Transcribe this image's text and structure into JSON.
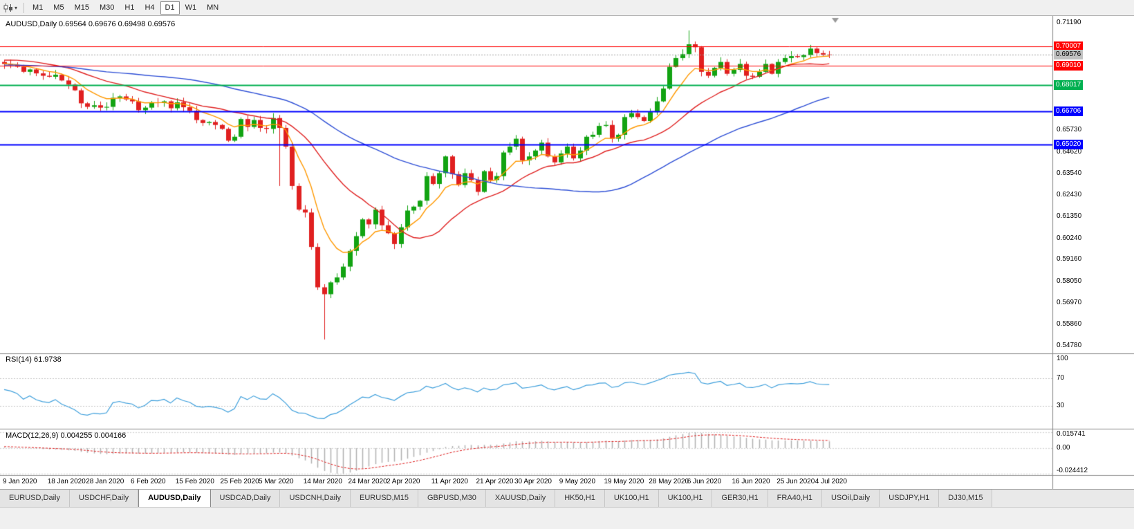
{
  "toolbar": {
    "timeframes": [
      "M1",
      "M5",
      "M15",
      "M30",
      "H1",
      "H4",
      "D1",
      "W1",
      "MN"
    ],
    "active_timeframe": "D1",
    "icons": {
      "chart_menu_caret": "▾"
    }
  },
  "chart": {
    "title_line": "AUDUSD,Daily 0.69564 0.69676 0.69498 0.69576",
    "symbol": "AUDUSD,Daily",
    "ohlc": {
      "open": "0.69564",
      "high": "0.69676",
      "low": "0.69498",
      "close": "0.69576"
    }
  },
  "chart_data": {
    "type": "candlestick",
    "symbol": "AUDUSD",
    "timeframe": "Daily",
    "price_min": 0.5478,
    "price_max": 0.7119,
    "bull_color": "#12a312",
    "bear_color": "#e02020",
    "first_open": 0.692,
    "closes": [
      0.691,
      0.6905,
      0.6896,
      0.687,
      0.6882,
      0.6862,
      0.685,
      0.6845,
      0.6855,
      0.6826,
      0.6805,
      0.6776,
      0.671,
      0.6692,
      0.67,
      0.6688,
      0.6692,
      0.6738,
      0.6745,
      0.673,
      0.672,
      0.6675,
      0.6688,
      0.6715,
      0.6712,
      0.672,
      0.6685,
      0.6715,
      0.669,
      0.6672,
      0.6625,
      0.661,
      0.6615,
      0.66,
      0.658,
      0.652,
      0.654,
      0.663,
      0.659,
      0.6625,
      0.6585,
      0.658,
      0.6635,
      0.6585,
      0.649,
      0.629,
      0.617,
      0.6155,
      0.598,
      0.5775,
      0.574,
      0.58,
      0.5825,
      0.588,
      0.596,
      0.6035,
      0.612,
      0.6095,
      0.617,
      0.609,
      0.605,
      0.5995,
      0.608,
      0.6165,
      0.6185,
      0.6215,
      0.634,
      0.63,
      0.6355,
      0.644,
      0.635,
      0.6295,
      0.6355,
      0.632,
      0.626,
      0.6365,
      0.632,
      0.634,
      0.646,
      0.649,
      0.653,
      0.642,
      0.644,
      0.647,
      0.651,
      0.644,
      0.641,
      0.6455,
      0.649,
      0.643,
      0.647,
      0.654,
      0.655,
      0.6595,
      0.66,
      0.653,
      0.655,
      0.664,
      0.666,
      0.664,
      0.662,
      0.6665,
      0.672,
      0.6785,
      0.6895,
      0.694,
      0.696,
      0.701,
      0.6995,
      0.687,
      0.685,
      0.689,
      0.692,
      0.686,
      0.688,
      0.691,
      0.685,
      0.6845,
      0.687,
      0.691,
      0.686,
      0.692,
      0.694,
      0.695,
      0.6945,
      0.6955,
      0.6988,
      0.6965,
      0.6958,
      0.69576
    ],
    "wick_overrides": {
      "43": {
        "low": 0.629
      },
      "50": {
        "low": 0.551
      },
      "107": {
        "high": 0.708
      }
    },
    "warmup_closes": [
      0.684,
      0.6848,
      0.6855,
      0.686,
      0.685,
      0.6842,
      0.685,
      0.6862,
      0.687,
      0.688,
      0.689,
      0.6902,
      0.6912,
      0.6922,
      0.6934,
      0.6945,
      0.6956,
      0.6964,
      0.6958,
      0.695,
      0.6956,
      0.6962,
      0.695,
      0.6938,
      0.6925,
      0.6915,
      0.6902,
      0.6895,
      0.6885,
      0.6905
    ],
    "moving_averages": [
      {
        "name": "fast-ma",
        "period": 8,
        "type": "ema",
        "color": "#ff9900"
      },
      {
        "name": "mid-ma",
        "period": 20,
        "type": "sma",
        "color": "#e02020"
      },
      {
        "name": "slow-ma",
        "period": 50,
        "type": "sma",
        "color": "#2e4fd6"
      }
    ],
    "hlines": [
      {
        "price": 0.70007,
        "label": "0.70007",
        "color": "#ff0000",
        "width": 1
      },
      {
        "price": 0.6901,
        "label": "0.69010",
        "color": "#ff0000",
        "width": 1
      },
      {
        "price": 0.68017,
        "label": "0.68017",
        "color": "#00b050",
        "width": 2
      },
      {
        "price": 0.66706,
        "label": "0.66706",
        "color": "#0000ff",
        "width": 2
      },
      {
        "price": 0.6502,
        "label": "0.65020",
        "color": "#0000ff",
        "width": 2
      }
    ],
    "current_price": {
      "value": 0.69576,
      "label": "0.69576",
      "line_color": "#9e9e9e",
      "badge_bg": "#c0c0c0",
      "badge_fg": "#000000"
    },
    "y_axis_labels": [
      "0.71190",
      "0.65730",
      "0.64620",
      "0.63540",
      "0.62430",
      "0.61350",
      "0.60240",
      "0.59160",
      "0.58050",
      "0.56970",
      "0.55860",
      "0.54780"
    ],
    "x_labels": [
      "9 Jan 2020",
      "18 Jan 2020",
      "28 Jan 2020",
      "6 Feb 2020",
      "15 Feb 2020",
      "25 Feb 2020",
      "5 Mar 2020",
      "14 Mar 2020",
      "24 Mar 2020",
      "2 Apr 2020",
      "11 Apr 2020",
      "21 Apr 2020",
      "30 Apr 2020",
      "9 May 2020",
      "19 May 2020",
      "28 May 2020",
      "6 Jun 2020",
      "16 Jun 2020",
      "25 Jun 2020",
      "4 Jul 2020"
    ],
    "rsi": {
      "label": "RSI(14) 61.9738",
      "period": 14,
      "current": 61.9738,
      "levels": [
        70,
        30
      ],
      "level_values": [
        100,
        70,
        30
      ],
      "axis_labels": [
        "100",
        "70",
        "30"
      ],
      "line_color": "#3d9fdc",
      "range": [
        0,
        100
      ]
    },
    "macd": {
      "label": "MACD(12,26,9) 0.004255 0.004166",
      "fast": 12,
      "slow": 26,
      "signal": 9,
      "current": 0.004255,
      "current_signal": 0.004166,
      "axis_labels": [
        "0.015741",
        "0.00",
        "-0.024412"
      ],
      "histogram_color": "#b2b2b2",
      "signal_color": "#e02020"
    }
  },
  "tabs": {
    "items": [
      "EURUSD,Daily",
      "USDCHF,Daily",
      "AUDUSD,Daily",
      "USDCAD,Daily",
      "USDCNH,Daily",
      "EURUSD,M15",
      "GBPUSD,M30",
      "XAUUSD,Daily",
      "HK50,H1",
      "UK100,H1",
      "UK100,H1",
      "GER30,H1",
      "FRA40,H1",
      "USOil,Daily",
      "USDJPY,H1",
      "DJ30,M15"
    ],
    "active_index": 2
  }
}
